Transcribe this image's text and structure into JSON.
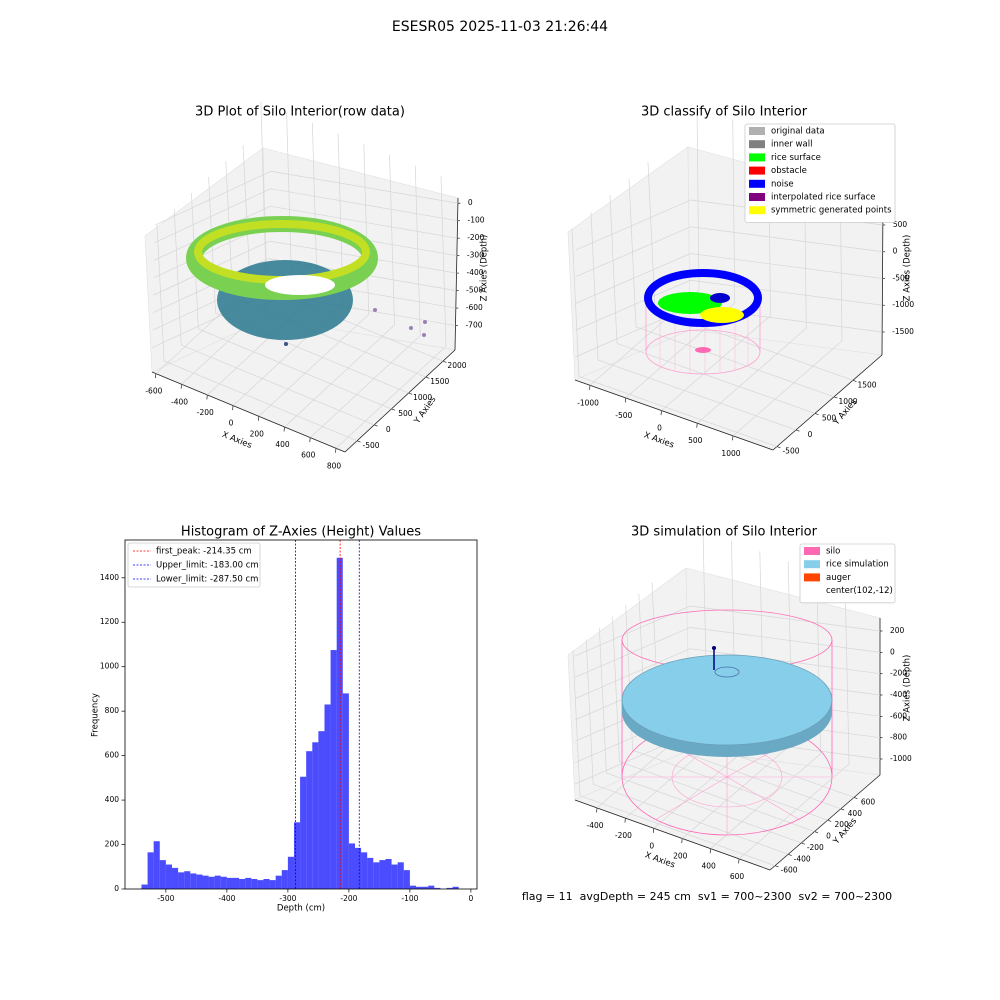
{
  "title": "ESESR05 2025-11-03 21:26:44",
  "footer": "flag = 11  avgDepth = 245 cm  sv1 = 700~2300  sv2 = 700~2300",
  "chart_data": [
    {
      "type": "scatter3d",
      "title": "3D Plot of Silo Interior(row data)",
      "xlabel": "X Axies",
      "ylabel": "Y Axies",
      "zlabel": "Z Axies (Depth)",
      "xlim": [
        -630,
        870
      ],
      "xticks": [
        -600,
        -400,
        -200,
        0,
        200,
        400,
        600,
        800
      ],
      "ylim": [
        -850,
        2350
      ],
      "yticks": [
        -500,
        0,
        500,
        1000,
        1500,
        2000
      ],
      "zlim": [
        -840,
        30
      ],
      "zticks": [
        0,
        -100,
        -200,
        -300,
        -400,
        -500,
        -600,
        -700
      ],
      "grid": true
    },
    {
      "type": "scatter3d",
      "title": "3D classify of Silo Interior",
      "xlabel": "X Axies",
      "ylabel": "Y Axies",
      "zlabel": "Z Axies (Depth)",
      "xlim": [
        -1210,
        1560
      ],
      "xticks": [
        -1000,
        -500,
        0,
        500,
        1000
      ],
      "ylim": [
        -605,
        2263
      ],
      "yticks": [
        -500,
        0,
        500,
        1000,
        1500
      ],
      "zlim": [
        -1930,
        967
      ],
      "zticks": [
        500,
        0,
        -500,
        -1000,
        -1500
      ],
      "grid": true,
      "legend": {
        "position": "upper right",
        "entries": [
          {
            "label": "original data",
            "color": "#b0b0b0"
          },
          {
            "label": "inner wall",
            "color": "#808080"
          },
          {
            "label": "rice surface",
            "color": "#00ff00"
          },
          {
            "label": "obstacle",
            "color": "#ff0000"
          },
          {
            "label": "noise",
            "color": "#0000ff"
          },
          {
            "label": "interpolated rice surface",
            "color": "#800080"
          },
          {
            "label": "symmetric generated points",
            "color": "#ffff00"
          }
        ]
      }
    },
    {
      "type": "histogram",
      "title": "Histogram of Z-Axies (Height) Values",
      "xlabel": "Depth (cm)",
      "ylabel": "Frequency",
      "color": "#0000ff",
      "bins": [
        -540,
        -530,
        -520,
        -510,
        -500,
        -490,
        -480,
        -470,
        -460,
        -450,
        -440,
        -430,
        -420,
        -410,
        -400,
        -390,
        -380,
        -370,
        -360,
        -350,
        -340,
        -330,
        -320,
        -310,
        -300,
        -290,
        -280,
        -270,
        -260,
        -250,
        -240,
        -230,
        -220,
        -210,
        -200,
        -190,
        -180,
        -170,
        -160,
        -150,
        -140,
        -130,
        -120,
        -110,
        -100,
        -90,
        -80,
        -70,
        -60,
        -50,
        -40,
        -30,
        -20
      ],
      "counts": [
        20,
        165,
        215,
        130,
        110,
        95,
        75,
        80,
        70,
        65,
        60,
        55,
        60,
        55,
        50,
        50,
        45,
        50,
        45,
        40,
        45,
        40,
        60,
        85,
        145,
        300,
        505,
        620,
        660,
        710,
        830,
        1075,
        1490,
        880,
        205,
        185,
        165,
        140,
        120,
        130,
        135,
        110,
        120,
        85,
        15,
        10,
        10,
        15,
        5,
        0,
        5,
        10
      ],
      "xlim": [
        -567,
        10
      ],
      "xticks": [
        -500,
        -400,
        -300,
        -200,
        -100,
        0
      ],
      "ylim": [
        0,
        1570
      ],
      "yticks": [
        0,
        200,
        400,
        600,
        800,
        1000,
        1200,
        1400
      ],
      "lines": [
        {
          "label": "first_peak: -214.35 cm",
          "value": -214.35,
          "color": "#ff0000"
        },
        {
          "label": "Upper_limit: -183.00 cm",
          "value": -183.0,
          "color": "#0000ff"
        },
        {
          "label": "Lower_limit: -287.50 cm",
          "value": -287.5,
          "color": "#0000ff"
        }
      ],
      "legend": {
        "position": "upper left"
      }
    },
    {
      "type": "scatter3d",
      "title": "3D simulation of Silo Interior",
      "xlabel": "X Axies",
      "ylabel": "Y Axies",
      "zlabel": "Z Axies (Depth)",
      "xlim": [
        -555,
        818
      ],
      "xticks": [
        -400,
        -200,
        0,
        200,
        400,
        600
      ],
      "ylim": [
        -676,
        995
      ],
      "yticks": [
        -600,
        -400,
        -200,
        0,
        200,
        400,
        600
      ],
      "zlim": [
        -1150,
        322
      ],
      "zticks": [
        200,
        0,
        -200,
        -400,
        -600,
        -800,
        -1000
      ],
      "grid": true,
      "legend": {
        "position": "upper right",
        "entries": [
          {
            "label": "silo",
            "color": "#ff69b4"
          },
          {
            "label": "rice simulation",
            "color": "#87ceeb"
          },
          {
            "label": "auger",
            "color": "#ff4500"
          },
          {
            "label": "center(102,-12)"
          }
        ]
      }
    }
  ]
}
